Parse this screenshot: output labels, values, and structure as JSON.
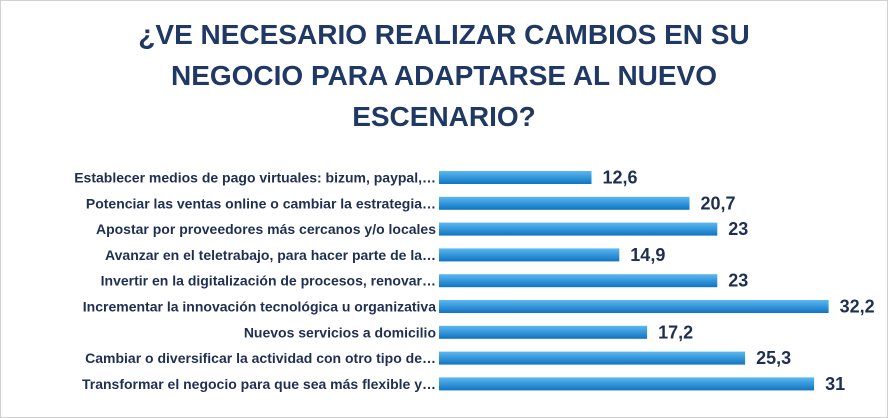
{
  "chart_data": {
    "type": "bar",
    "orientation": "horizontal",
    "title_lines": [
      "¿VE NECESARIO REALIZAR CAMBIOS EN SU",
      "NEGOCIO PARA ADAPTARSE AL NUEVO",
      "ESCENARIO?"
    ],
    "categories": [
      "Establecer medios de pago virtuales: bizum, paypal,…",
      "Potenciar las ventas online o cambiar la estrategia…",
      "Apostar por proveedores más cercanos y/o locales",
      "Avanzar en el teletrabajo, para hacer parte de la…",
      "Invertir en la digitalización de procesos, renovar…",
      "Incrementar la innovación tecnológica u organizativa",
      "Nuevos servicios a domicilio",
      "Cambiar o diversificar la actividad con otro tipo de…",
      "Transformar el negocio para que sea más flexible y…"
    ],
    "values": [
      12.6,
      20.7,
      23,
      14.9,
      23,
      32.2,
      17.2,
      25.3,
      31
    ],
    "value_labels": [
      "12,6",
      "20,7",
      "23",
      "14,9",
      "23",
      "32,2",
      "17,2",
      "25,3",
      "31"
    ],
    "xlim": [
      0,
      35
    ],
    "grid": false,
    "legend": "none",
    "colors": {
      "bar_top": "#5bb8f0",
      "bar_bottom": "#0f74c2",
      "title": "#1f3864",
      "labels": "#1f2f52"
    }
  }
}
